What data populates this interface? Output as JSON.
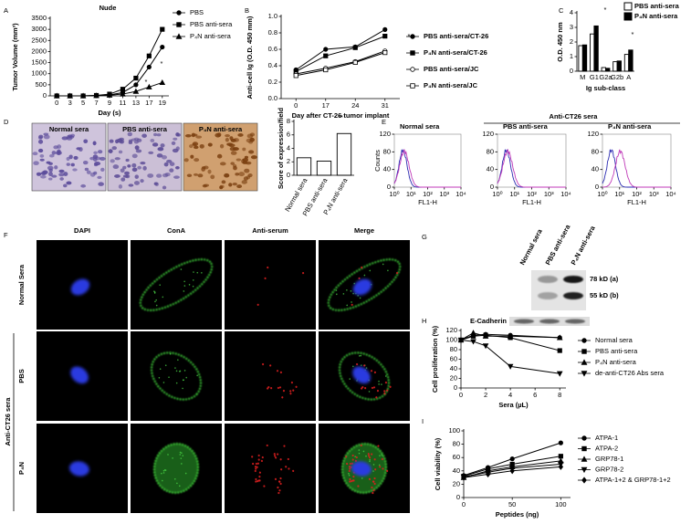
{
  "panel_letters": [
    "A",
    "B",
    "C",
    "D",
    "E",
    "F",
    "G",
    "H",
    "I"
  ],
  "chart_data": [
    {
      "type": "line",
      "title": "Nude",
      "xlabel": "Day (s)",
      "ylabel": "Tumor Volume (mm³)",
      "categories": [
        "0",
        "3",
        "5",
        "7",
        "9",
        "11",
        "13",
        "17",
        "19"
      ],
      "ylim": [
        0,
        3500
      ],
      "yticks": [
        0,
        500,
        1000,
        1500,
        2000,
        2500,
        3000,
        3500
      ],
      "series": [
        {
          "name": "PBS",
          "color": "#000000",
          "marker": "circle",
          "filled": true,
          "values": [
            0,
            0,
            0,
            10,
            40,
            150,
            500,
            1300,
            2200
          ]
        },
        {
          "name": "PBS anti-sera",
          "color": "#000000",
          "marker": "square",
          "filled": true,
          "values": [
            0,
            0,
            0,
            20,
            80,
            300,
            800,
            1800,
            3000
          ]
        },
        {
          "name": "P₄N anti-sera",
          "color": "#000000",
          "marker": "triangle",
          "filled": true,
          "values": [
            0,
            0,
            0,
            10,
            30,
            80,
            200,
            400,
            600
          ]
        }
      ],
      "annotations": [
        "*",
        "*"
      ]
    },
    {
      "type": "line",
      "xlabel": "Day after CT-26 tumor implant",
      "ylabel": "Anti-cell Ig (O.D. 450 mm)",
      "categories": [
        "0",
        "17",
        "24",
        "31"
      ],
      "ylim": [
        0,
        1.0
      ],
      "yticks": [
        {
          "value": 0,
          "label": "0.0"
        },
        {
          "value": 0.2,
          "label": "0.2"
        },
        {
          "value": 0.4,
          "label": "0.4"
        },
        {
          "value": 0.6,
          "label": "0.6"
        },
        {
          "value": 0.8,
          "label": "0.8"
        },
        {
          "value": 1.0,
          "label": "1.0"
        }
      ],
      "series": [
        {
          "name": "PBS anti-sera/CT-26",
          "color": "#000000",
          "marker": "circle",
          "filled": true,
          "values": [
            0.35,
            0.6,
            0.63,
            0.84
          ]
        },
        {
          "name": "P₄N anti-sera/CT-26",
          "color": "#000000",
          "marker": "square",
          "filled": true,
          "values": [
            0.33,
            0.52,
            0.62,
            0.76
          ]
        },
        {
          "name": "PBS anti-sera/JC",
          "color": "#000000",
          "marker": "circle",
          "filled": false,
          "values": [
            0.3,
            0.37,
            0.45,
            0.58
          ]
        },
        {
          "name": "P₄N anti-sera/JC",
          "color": "#000000",
          "marker": "square",
          "filled": false,
          "values": [
            0.28,
            0.35,
            0.44,
            0.56
          ]
        }
      ],
      "annotations": [
        "*"
      ]
    },
    {
      "type": "bar",
      "xlabel": "Ig sub-class",
      "ylabel": "O.D. 450 nm",
      "categories": [
        "M",
        "G1",
        "G2a",
        "G2b",
        "A"
      ],
      "ylim": [
        0,
        4
      ],
      "yticks": [
        0,
        1,
        2,
        3,
        4
      ],
      "series": [
        {
          "name": "PBS anti-sera",
          "color": "#ffffff",
          "values": [
            1.75,
            2.55,
            0.25,
            0.65,
            1.15
          ]
        },
        {
          "name": "P₄N anti-sera",
          "color": "#000000",
          "values": [
            1.8,
            3.1,
            0.2,
            0.7,
            1.45
          ]
        }
      ],
      "annotations": [
        "*",
        "*"
      ]
    },
    {
      "type": "bar",
      "ylabel": "Score of expression/field",
      "categories": [
        "Normal sera",
        "PBS anti-sera",
        "P₄N anti-sera"
      ],
      "values": [
        2.6,
        2.1,
        6.2
      ],
      "color": "#ffffff",
      "ylim": [
        0,
        8
      ],
      "yticks": [
        0,
        2,
        4,
        6,
        8
      ],
      "annotations": [
        "**"
      ]
    },
    {
      "type": "flow",
      "title": "Normal sera",
      "xlabel": "FL1-H",
      "ylabel": "Counts",
      "xscale": "log",
      "xlim": [
        1,
        10000
      ],
      "xticks": [
        {
          "value": 1,
          "label": "10⁰"
        },
        {
          "value": 10,
          "label": "10¹"
        },
        {
          "value": 100,
          "label": "10²"
        },
        {
          "value": 1000,
          "label": "10³"
        },
        {
          "value": 10000,
          "label": "10⁴"
        }
      ],
      "ylim": [
        0,
        120
      ],
      "yticks": [
        0,
        40,
        80,
        120
      ]
    },
    {
      "type": "flow",
      "title": "PBS anti-sera",
      "xlabel": "FL1-H",
      "xscale": "log",
      "xlim": [
        1,
        10000
      ],
      "xticks": [
        {
          "value": 1,
          "label": "10⁰"
        },
        {
          "value": 10,
          "label": "10¹"
        },
        {
          "value": 100,
          "label": "10²"
        },
        {
          "value": 1000,
          "label": "10³"
        },
        {
          "value": 10000,
          "label": "10⁴"
        }
      ],
      "ylim": [
        0,
        120
      ],
      "yticks": [
        0,
        40,
        80,
        120
      ]
    },
    {
      "type": "flow",
      "title": "P₄N anti-sera",
      "xlabel": "FL1-H",
      "xscale": "log",
      "xlim": [
        1,
        10000
      ],
      "xticks": [
        {
          "value": 1,
          "label": "10⁰"
        },
        {
          "value": 10,
          "label": "10¹"
        },
        {
          "value": 100,
          "label": "10²"
        },
        {
          "value": 1000,
          "label": "10³"
        },
        {
          "value": 10000,
          "label": "10⁴"
        }
      ],
      "ylim": [
        0,
        120
      ],
      "yticks": [
        0,
        40,
        80,
        120
      ]
    },
    {
      "type": "line",
      "xlabel": "Sera (µL)",
      "ylabel": "Cell proliferation (%)",
      "x": [
        0,
        1,
        2,
        4,
        8
      ],
      "xlim": [
        0,
        8.5
      ],
      "xticks": [
        0,
        2,
        4,
        6,
        8
      ],
      "ylim": [
        0,
        120
      ],
      "yticks": [
        0,
        20,
        40,
        60,
        80,
        100,
        120
      ],
      "series": [
        {
          "name": "Normal sera",
          "color": "#000000",
          "marker": "circle",
          "filled": true,
          "values": [
            100,
            110,
            112,
            110,
            105
          ]
        },
        {
          "name": "PBS anti-sera",
          "color": "#000000",
          "marker": "square",
          "filled": true,
          "values": [
            100,
            108,
            110,
            105,
            78
          ]
        },
        {
          "name": "P₄N anti-sera",
          "color": "#000000",
          "marker": "triangle",
          "filled": true,
          "values": [
            100,
            115,
            108,
            108,
            105
          ]
        },
        {
          "name": "de-anti-CT26 Abs sera",
          "color": "#000000",
          "marker": "triangle-down",
          "filled": true,
          "values": [
            100,
            97,
            88,
            45,
            30
          ]
        }
      ]
    },
    {
      "type": "line",
      "xlabel": "Peptides (ng)",
      "ylabel": "Cell viability (%)",
      "x": [
        0,
        25,
        50,
        100
      ],
      "xlim": [
        0,
        110
      ],
      "xticks": [
        0,
        50,
        100
      ],
      "ylim": [
        0,
        100
      ],
      "yticks": [
        0,
        20,
        40,
        60,
        80,
        100
      ],
      "series": [
        {
          "name": "ATPA-1",
          "color": "#000000",
          "marker": "circle",
          "filled": true,
          "values": [
            33,
            45,
            58,
            82
          ]
        },
        {
          "name": "ATPA-2",
          "color": "#000000",
          "marker": "square",
          "filled": true,
          "values": [
            32,
            43,
            50,
            62
          ]
        },
        {
          "name": "GRP78-1",
          "color": "#000000",
          "marker": "triangle",
          "filled": true,
          "values": [
            30,
            40,
            46,
            55
          ]
        },
        {
          "name": "GRP78-2",
          "color": "#000000",
          "marker": "triangle-down",
          "filled": true,
          "values": [
            31,
            38,
            44,
            50
          ]
        },
        {
          "name": "ATPA-1+2 & GRP78-1+2",
          "color": "#000000",
          "marker": "diamond",
          "filled": true,
          "values": [
            30,
            35,
            40,
            46
          ]
        }
      ]
    }
  ],
  "figure_d": {
    "images": [
      "Normal sera",
      "PBS anti-sera",
      "P₄N anti-sera"
    ]
  },
  "figure_e": {
    "group_label": "Anti-CT26 sera"
  },
  "figure_f": {
    "columns": [
      "DAPI",
      "ConA",
      "Anti-serum",
      "Merge"
    ],
    "rows": [
      "Normal Sera",
      "PBS",
      "P₄N"
    ],
    "group_label": "Anti-CT26 sera"
  },
  "figure_g": {
    "lanes": [
      "Normal sera",
      "PBS anti-sera",
      "P₄N anti-sera"
    ],
    "bands": [
      "78 kD (a)",
      "55 kD (b)"
    ],
    "loading_control": "E-Cadherin"
  }
}
